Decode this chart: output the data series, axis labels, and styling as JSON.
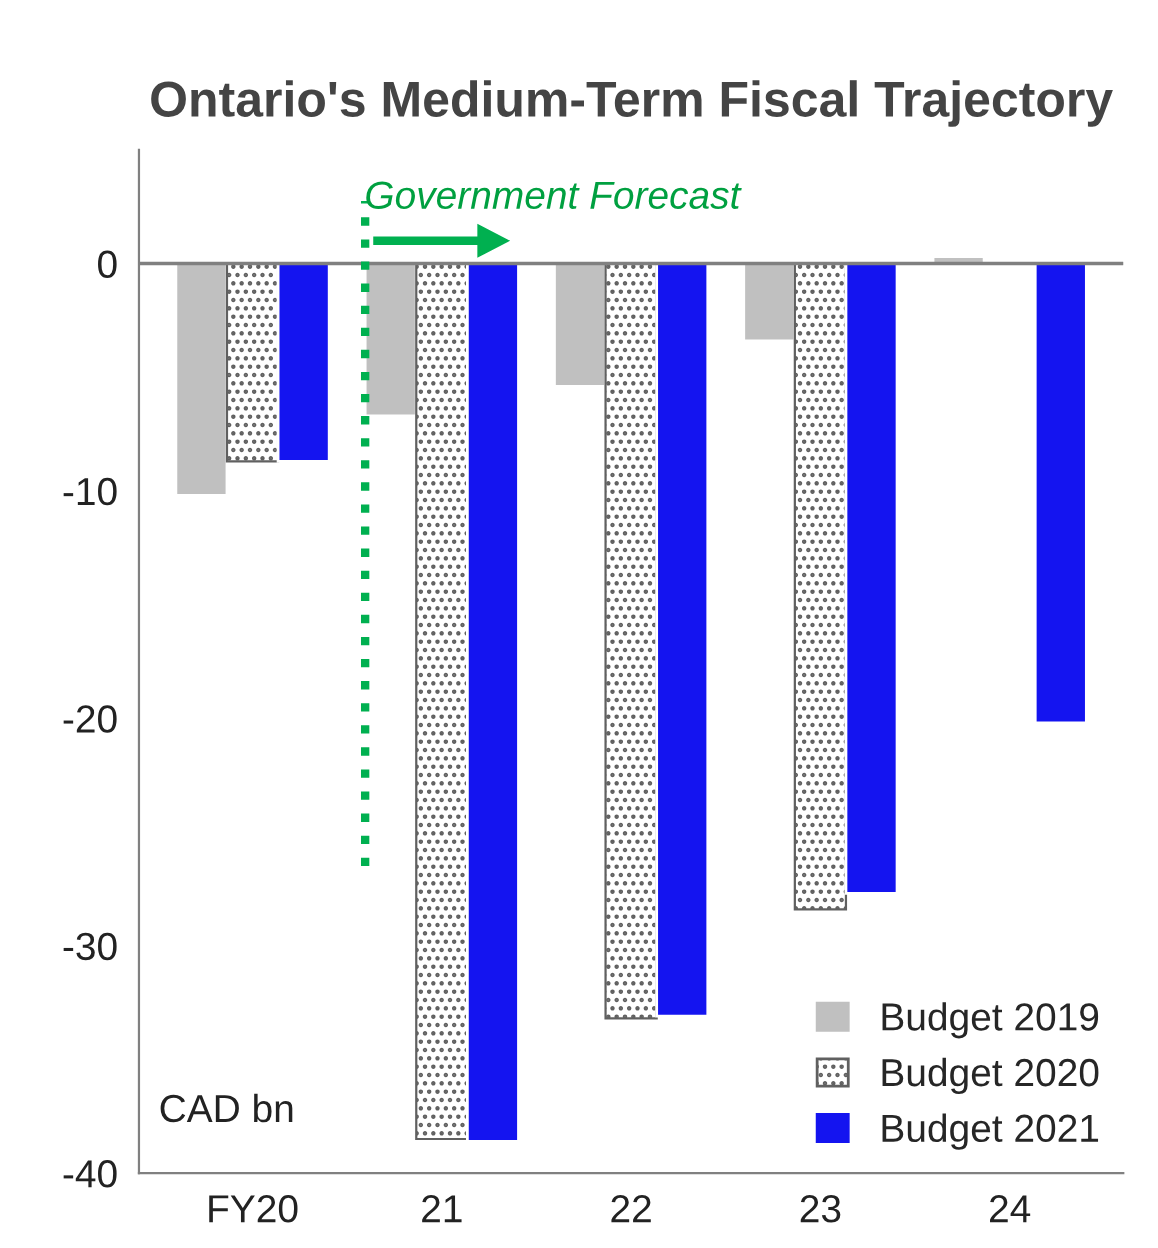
{
  "chart_data": {
    "type": "bar",
    "title": "Ontario's Medium-Term Fiscal Trajectory",
    "categories": [
      "FY20",
      "21",
      "22",
      "23",
      "24"
    ],
    "series": [
      {
        "name": "Budget 2019",
        "color": "#c0c0c0",
        "values": [
          -10.2,
          -6.7,
          -5.4,
          -3.4,
          0.3
        ]
      },
      {
        "name": "Budget 2020",
        "color": "#606060",
        "values": [
          -8.7,
          -38.5,
          -33.2,
          -28.4,
          null
        ]
      },
      {
        "name": "Budget 2021",
        "color": "#1414f0",
        "values": [
          -8.7,
          -38.6,
          -33.1,
          -27.7,
          -20.2
        ]
      }
    ],
    "ylim": [
      -40,
      5
    ],
    "yticks": [
      0,
      -10,
      -20,
      -30,
      -40
    ],
    "ref_lines": [
      {
        "axis": "y",
        "value": 0,
        "color": "#808080",
        "line_style": "solid"
      },
      {
        "axis": "x",
        "value": "21",
        "color": "#00b050",
        "line_style": "dotted"
      }
    ],
    "annotations": [
      "Government Forecast",
      "CAD bn"
    ],
    "legend": "bottom right",
    "grid": false
  }
}
